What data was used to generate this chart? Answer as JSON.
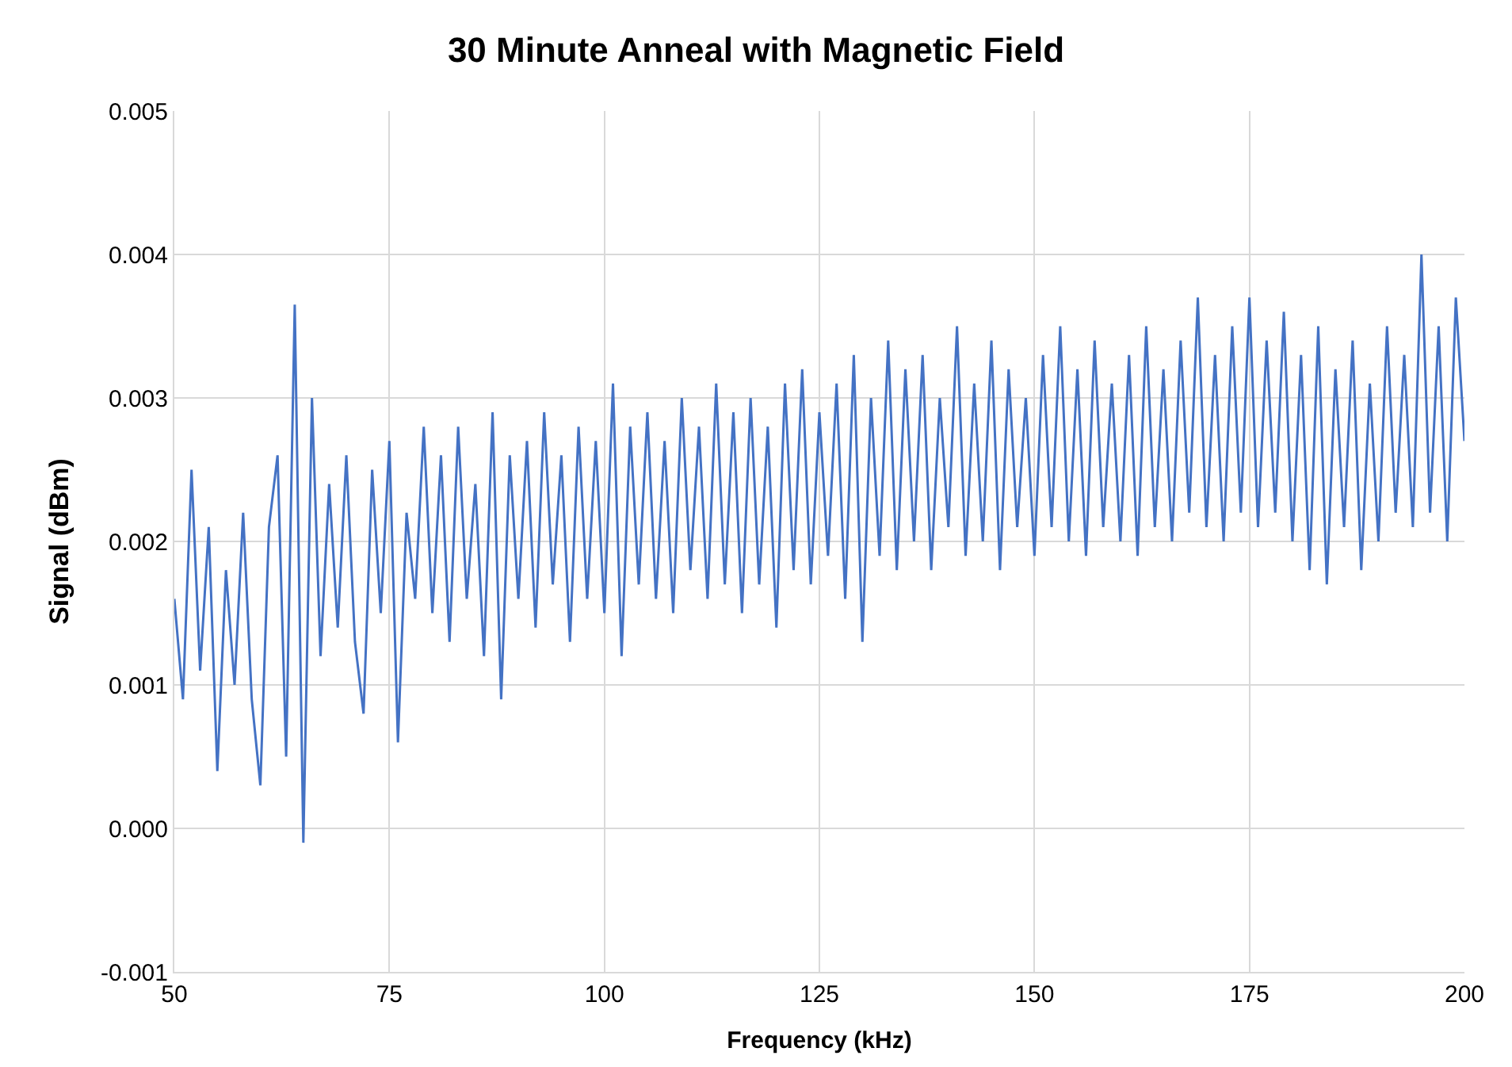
{
  "chart_data": {
    "type": "line",
    "title": "30 Minute Anneal with Magnetic Field",
    "xlabel": "Frequency (kHz)",
    "ylabel": "Signal (dBm)",
    "xlim": [
      50,
      200
    ],
    "xticks": [
      50,
      75,
      100,
      125,
      150,
      175,
      200
    ],
    "ylim": [
      -0.001,
      0.005
    ],
    "yticks": [
      {
        "value": -0.001,
        "label": "-0.001"
      },
      {
        "value": 0,
        "label": "0.000"
      },
      {
        "value": 0.001,
        "label": "0.001"
      },
      {
        "value": 0.002,
        "label": "0.002"
      },
      {
        "value": 0.003,
        "label": "0.003"
      },
      {
        "value": 0.004,
        "label": "0.004"
      },
      {
        "value": 0.005,
        "label": "0.005"
      }
    ],
    "grid": true,
    "marker": "none",
    "line_style": "solid",
    "x": [
      50,
      51,
      52,
      53,
      54,
      55,
      56,
      57,
      58,
      59,
      60,
      61,
      62,
      63,
      64,
      65,
      66,
      67,
      68,
      69,
      70,
      71,
      72,
      73,
      74,
      75,
      76,
      77,
      78,
      79,
      80,
      81,
      82,
      83,
      84,
      85,
      86,
      87,
      88,
      89,
      90,
      91,
      92,
      93,
      94,
      95,
      96,
      97,
      98,
      99,
      100,
      101,
      102,
      103,
      104,
      105,
      106,
      107,
      108,
      109,
      110,
      111,
      112,
      113,
      114,
      115,
      116,
      117,
      118,
      119,
      120,
      121,
      122,
      123,
      124,
      125,
      126,
      127,
      128,
      129,
      130,
      131,
      132,
      133,
      134,
      135,
      136,
      137,
      138,
      139,
      140,
      141,
      142,
      143,
      144,
      145,
      146,
      147,
      148,
      149,
      150,
      151,
      152,
      153,
      154,
      155,
      156,
      157,
      158,
      159,
      160,
      161,
      162,
      163,
      164,
      165,
      166,
      167,
      168,
      169,
      170,
      171,
      172,
      173,
      174,
      175,
      176,
      177,
      178,
      179,
      180,
      181,
      182,
      183,
      184,
      185,
      186,
      187,
      188,
      189,
      190,
      191,
      192,
      193,
      194,
      195,
      196,
      197,
      198,
      199,
      200
    ],
    "series": [
      {
        "color": "#4472c4",
        "values": [
          0.0016,
          0.0009,
          0.0025,
          0.0011,
          0.0021,
          0.0004,
          0.0018,
          0.001,
          0.0022,
          0.0009,
          0.0003,
          0.0021,
          0.0026,
          0.0005,
          0.00365,
          -0.0001,
          0.003,
          0.0012,
          0.0024,
          0.0014,
          0.0026,
          0.0013,
          0.0008,
          0.0025,
          0.0015,
          0.0027,
          0.0006,
          0.0022,
          0.0016,
          0.0028,
          0.0015,
          0.0026,
          0.0013,
          0.0028,
          0.0016,
          0.0024,
          0.0012,
          0.0029,
          0.0009,
          0.0026,
          0.0016,
          0.0027,
          0.0014,
          0.0029,
          0.0017,
          0.0026,
          0.0013,
          0.0028,
          0.0016,
          0.0027,
          0.0015,
          0.0031,
          0.0012,
          0.0028,
          0.0017,
          0.0029,
          0.0016,
          0.0027,
          0.0015,
          0.003,
          0.0018,
          0.0028,
          0.0016,
          0.0031,
          0.0017,
          0.0029,
          0.0015,
          0.003,
          0.0017,
          0.0028,
          0.0014,
          0.0031,
          0.0018,
          0.0032,
          0.0017,
          0.0029,
          0.0019,
          0.0031,
          0.0016,
          0.0033,
          0.0013,
          0.003,
          0.0019,
          0.0034,
          0.0018,
          0.0032,
          0.002,
          0.0033,
          0.0018,
          0.003,
          0.0021,
          0.0035,
          0.0019,
          0.0031,
          0.002,
          0.0034,
          0.0018,
          0.0032,
          0.0021,
          0.003,
          0.0019,
          0.0033,
          0.0021,
          0.0035,
          0.002,
          0.0032,
          0.0019,
          0.0034,
          0.0021,
          0.0031,
          0.002,
          0.0033,
          0.0019,
          0.0035,
          0.0021,
          0.0032,
          0.002,
          0.0034,
          0.0022,
          0.0037,
          0.0021,
          0.0033,
          0.002,
          0.0035,
          0.0022,
          0.0037,
          0.0021,
          0.0034,
          0.0022,
          0.0036,
          0.002,
          0.0033,
          0.0018,
          0.0035,
          0.0017,
          0.0032,
          0.0021,
          0.0034,
          0.0018,
          0.0031,
          0.002,
          0.0035,
          0.0022,
          0.0033,
          0.0021,
          0.004,
          0.0022,
          0.0035,
          0.002,
          0.0037,
          0.0027
        ]
      }
    ]
  }
}
